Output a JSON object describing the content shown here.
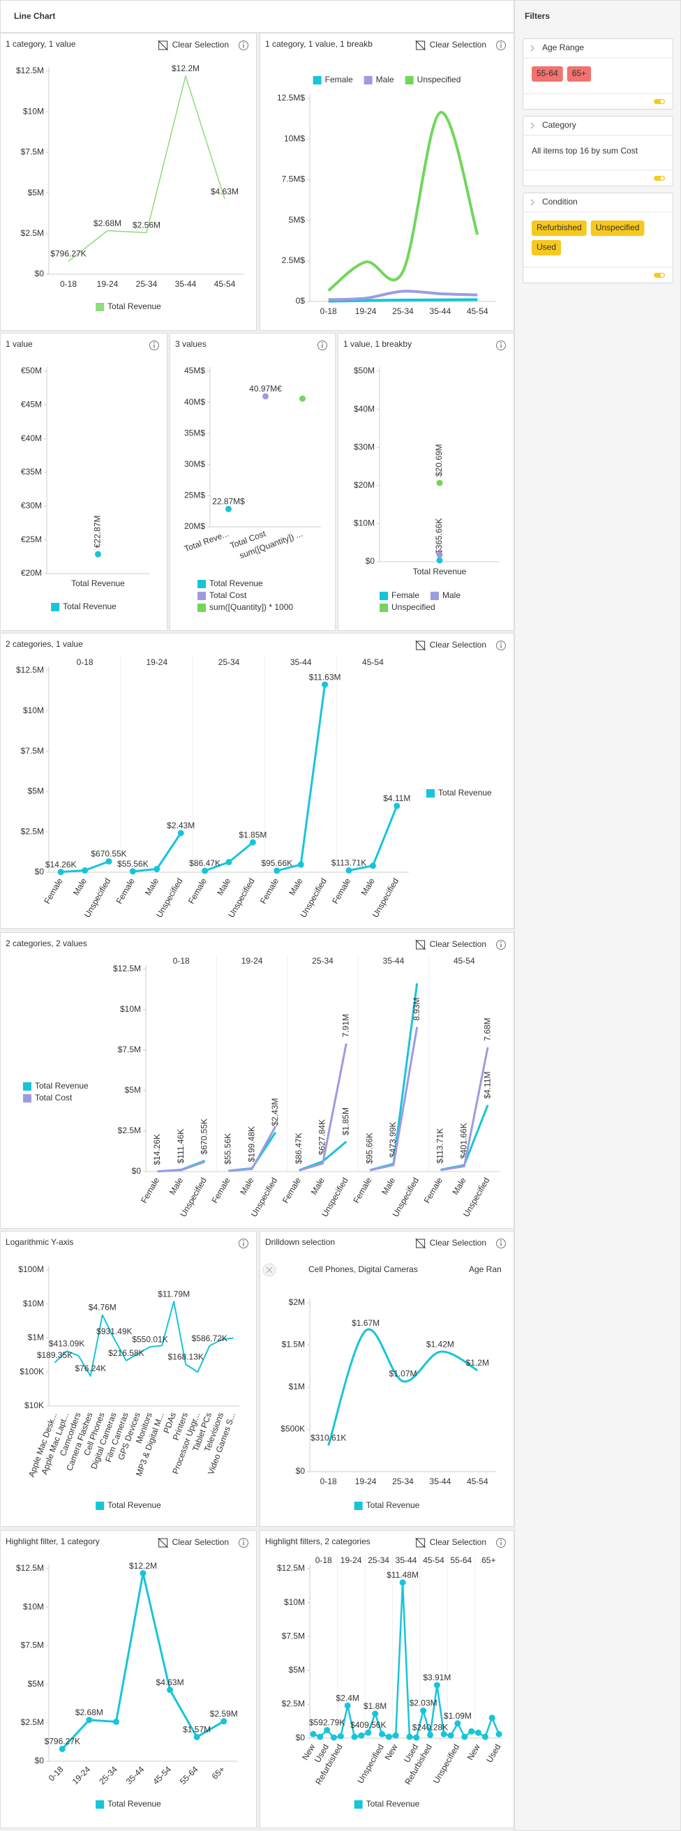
{
  "header": {
    "title": "Line Chart"
  },
  "filters": {
    "title": "Filters",
    "sections": [
      {
        "name": "Age Range",
        "chips": [
          "55-64",
          "65+"
        ],
        "chip_color": "#f0736f",
        "chip_text_color": "#ffffff"
      },
      {
        "name": "Category",
        "text": "All items top 16 by sum Cost"
      },
      {
        "name": "Condition",
        "chips": [
          "Refurbished",
          "Unspecified",
          "Used"
        ],
        "chip_color": "#f7c81e",
        "chip_text_color": "#333333"
      }
    ]
  },
  "chart_data": [
    {
      "type": "line",
      "title": "1 category, 1 value",
      "clear_selection": "Clear Selection",
      "categories": [
        "0-18",
        "19-24",
        "25-34",
        "35-44",
        "45-54"
      ],
      "series": [
        {
          "name": "Total Revenue",
          "color": "#8fdc7a",
          "values": [
            796270,
            2680000,
            2560000,
            12200000,
            4630000
          ],
          "value_labels": [
            "$796.27K",
            "$2.68M",
            "$2.56M",
            "$12.2M",
            "$4.63M"
          ]
        }
      ],
      "ylim": [
        0,
        12500000
      ],
      "yticks": [
        {
          "value": 0,
          "label": "$0"
        },
        {
          "value": 2500000,
          "label": "$2.5M"
        },
        {
          "value": 5000000,
          "label": "$5M"
        },
        {
          "value": 7500000,
          "label": "$7.5M"
        },
        {
          "value": 10000000,
          "label": "$10M"
        },
        {
          "value": 12500000,
          "label": "$12.5M"
        }
      ],
      "smooth": false,
      "markers": false,
      "legend": "bottom"
    },
    {
      "type": "line",
      "title": "1 category, 1 value, 1 breakb",
      "clear_selection": "Clear Selection",
      "categories": [
        "0-18",
        "19-24",
        "25-34",
        "35-44",
        "45-54"
      ],
      "series": [
        {
          "name": "Female",
          "color": "#16c5d9",
          "values": [
            14260,
            55560,
            86470,
            95660,
            113710
          ]
        },
        {
          "name": "Male",
          "color": "#9d9be0",
          "values": [
            111460,
            199480,
            627840,
            473990,
            401660
          ]
        },
        {
          "name": "Unspecified",
          "color": "#72d65c",
          "values": [
            670550,
            2430000,
            1850000,
            11630000,
            4110000
          ]
        }
      ],
      "ylim": [
        0,
        12500000
      ],
      "yticks": [
        {
          "value": 0,
          "label": "0$"
        },
        {
          "value": 2500000,
          "label": "2.5M$"
        },
        {
          "value": 5000000,
          "label": "5M$"
        },
        {
          "value": 7500000,
          "label": "7.5M$"
        },
        {
          "value": 10000000,
          "label": "10M$"
        },
        {
          "value": 12500000,
          "label": "12.5M$"
        }
      ],
      "smooth": true,
      "markers": false,
      "legend": "top"
    },
    {
      "type": "line",
      "title": "1 value",
      "categories": [
        "Total Revenue"
      ],
      "series": [
        {
          "name": "Total Revenue",
          "color": "#16c5d9",
          "values": [
            22870000
          ],
          "value_labels": [
            "€22.87M"
          ]
        }
      ],
      "ylim": [
        20000000,
        50000000
      ],
      "yticks": [
        {
          "value": 20000000,
          "label": "€20M"
        },
        {
          "value": 25000000,
          "label": "€25M"
        },
        {
          "value": 30000000,
          "label": "€30M"
        },
        {
          "value": 35000000,
          "label": "€35M"
        },
        {
          "value": 40000000,
          "label": "€40M"
        },
        {
          "value": 45000000,
          "label": "€45M"
        },
        {
          "value": 50000000,
          "label": "€50M"
        }
      ],
      "smooth": false,
      "markers": true,
      "legend": "bottom"
    },
    {
      "type": "line",
      "title": "3 values",
      "categories": [
        "Total Reve...",
        "Total Cost",
        "sum([Quantity]) ..."
      ],
      "series": [
        {
          "name": "Total Revenue",
          "color": "#16c5d9",
          "values": [
            22870000,
            null,
            null
          ],
          "value_labels": [
            "22.87M$",
            null,
            null
          ]
        },
        {
          "name": "Total Cost",
          "color": "#9d9be0",
          "values": [
            null,
            40970000,
            null
          ],
          "value_labels": [
            null,
            "40.97M€",
            null
          ]
        },
        {
          "name": "sum([Quantity]) * 1000",
          "color": "#72d65c",
          "values": [
            null,
            null,
            40600000
          ]
        }
      ],
      "ylim": [
        20000000,
        45000000
      ],
      "yticks": [
        {
          "value": 20000000,
          "label": "20M$"
        },
        {
          "value": 25000000,
          "label": "25M$"
        },
        {
          "value": 30000000,
          "label": "30M$"
        },
        {
          "value": 35000000,
          "label": "35M$"
        },
        {
          "value": 40000000,
          "label": "40M$"
        },
        {
          "value": 45000000,
          "label": "45M$"
        }
      ],
      "smooth": false,
      "markers": true,
      "legend": "bottom"
    },
    {
      "type": "line",
      "title": "1 value, 1 breakby",
      "categories": [
        "Total Revenue"
      ],
      "series": [
        {
          "name": "Female",
          "color": "#16c5d9",
          "values": [
            365660
          ],
          "value_labels": [
            "$365.66K"
          ]
        },
        {
          "name": "Male",
          "color": "#9d9be0",
          "values": [
            1810000
          ]
        },
        {
          "name": "Unspecified",
          "color": "#72d65c",
          "values": [
            20690000
          ],
          "value_labels": [
            "$20.69M"
          ]
        }
      ],
      "ylim": [
        0,
        50000000
      ],
      "yticks": [
        {
          "value": 0,
          "label": "$0"
        },
        {
          "value": 10000000,
          "label": "$10M"
        },
        {
          "value": 20000000,
          "label": "$20M"
        },
        {
          "value": 30000000,
          "label": "$30M"
        },
        {
          "value": 40000000,
          "label": "$40M"
        },
        {
          "value": 50000000,
          "label": "$50M"
        }
      ],
      "smooth": false,
      "markers": true,
      "legend": "bottom"
    },
    {
      "type": "line",
      "title": "2 categories, 1 value",
      "clear_selection": "Clear Selection",
      "groups": [
        "0-18",
        "19-24",
        "25-34",
        "35-44",
        "45-54"
      ],
      "categories": [
        "Female",
        "Male",
        "Unspecified",
        "Female",
        "Male",
        "Unspecified",
        "Female",
        "Male",
        "Unspecified",
        "Female",
        "Male",
        "Unspecified",
        "Female",
        "Male",
        "Unspecified"
      ],
      "series": [
        {
          "name": "Total Revenue",
          "color": "#16c5d9",
          "values": [
            14260,
            111460,
            670550,
            55560,
            199480,
            2430000,
            86470,
            627840,
            1850000,
            95660,
            473990,
            11630000,
            113710,
            401660,
            4110000
          ],
          "value_labels": [
            "$14.26K",
            null,
            "$670.55K",
            "$55.56K",
            null,
            "$2.43M",
            "$86.47K",
            null,
            "$1.85M",
            "$95.66K",
            null,
            "$11.63M",
            "$113.71K",
            null,
            "$4.11M"
          ]
        }
      ],
      "ylim": [
        0,
        12500000
      ],
      "yticks": [
        {
          "value": 0,
          "label": "$0"
        },
        {
          "value": 2500000,
          "label": "$2.5M"
        },
        {
          "value": 5000000,
          "label": "$5M"
        },
        {
          "value": 7500000,
          "label": "$7.5M"
        },
        {
          "value": 10000000,
          "label": "$10M"
        },
        {
          "value": 12500000,
          "label": "$12.5M"
        }
      ],
      "smooth": false,
      "markers": true,
      "connect_groups": false,
      "legend": "right"
    },
    {
      "type": "line",
      "title": "2 categories, 2 values",
      "clear_selection": "Clear Selection",
      "groups": [
        "0-18",
        "19-24",
        "25-34",
        "35-44",
        "45-54"
      ],
      "categories": [
        "Female",
        "Male",
        "Unspecified",
        "Female",
        "Male",
        "Unspecified",
        "Female",
        "Male",
        "Unspecified",
        "Female",
        "Male",
        "Unspecified",
        "Female",
        "Male",
        "Unspecified"
      ],
      "series": [
        {
          "name": "Total Revenue",
          "color": "#16c5d9",
          "values": [
            14260,
            111460,
            670550,
            55560,
            199480,
            2430000,
            86470,
            627840,
            1850000,
            95660,
            473990,
            11630000,
            113710,
            401660,
            4110000
          ],
          "value_labels": [
            "$14.26K",
            "$111.46K",
            "$670.55K",
            "$55.56K",
            "$199.48K",
            "$2.43M",
            "$86.47K",
            "$627.84K",
            "$1.85M",
            "$95.66K",
            "$473.99K",
            null,
            "$113.71K",
            "$401.66K",
            "$4.11M"
          ]
        },
        {
          "name": "Total Cost",
          "color": "#9d9be0",
          "values": [
            10000,
            90000,
            600000,
            45000,
            160000,
            2800000,
            70000,
            500000,
            7910000,
            80000,
            400000,
            8930000,
            90000,
            330000,
            7680000
          ],
          "value_labels": [
            null,
            null,
            null,
            null,
            null,
            null,
            null,
            null,
            "7.91M",
            null,
            null,
            "8.93M",
            null,
            null,
            "7.68M"
          ]
        }
      ],
      "ylim": [
        0,
        12500000
      ],
      "yticks": [
        {
          "value": 0,
          "label": "$0"
        },
        {
          "value": 2500000,
          "label": "$2.5M"
        },
        {
          "value": 5000000,
          "label": "$5M"
        },
        {
          "value": 7500000,
          "label": "$7.5M"
        },
        {
          "value": 10000000,
          "label": "$10M"
        },
        {
          "value": 12500000,
          "label": "$12.5M"
        }
      ],
      "smooth": false,
      "markers": false,
      "connect_groups": false,
      "legend": "left"
    },
    {
      "type": "line",
      "title": "Logarithmic Y-axis",
      "log_scale": true,
      "categories": [
        "Apple Mac Desk...",
        "Apple Mac Lapt...",
        "Camcorders",
        "Camera Flashes",
        "Cell Phones",
        "Digital Cameras",
        "Film Cameras",
        "GPS Devices",
        "Monitors",
        "MP3 & Digital M...",
        "PDAs",
        "Printers",
        "Processor Upgr...",
        "Tablet PCs",
        "Televisions",
        "Video Games S..."
      ],
      "series": [
        {
          "name": "Total Revenue",
          "color": "#16c5d9",
          "values": [
            189350,
            413090,
            300000,
            76240,
            4760000,
            931490,
            216580,
            350000,
            550010,
            600000,
            11790000,
            168130,
            100000,
            586720,
            900000,
            1000000
          ],
          "value_labels": [
            "$189.35K",
            "$413.09K",
            null,
            "$76.24K",
            "$4.76M",
            "$931.49K",
            "$216.58K",
            null,
            "$550.01K",
            null,
            "$11.79M",
            "$168.13K",
            null,
            "$586.72K",
            null,
            null
          ]
        }
      ],
      "ylim": [
        10000,
        100000000
      ],
      "yticks": [
        {
          "value": 10000,
          "label": "$10K"
        },
        {
          "value": 100000,
          "label": "$100K"
        },
        {
          "value": 1000000,
          "label": "$1M"
        },
        {
          "value": 10000000,
          "label": "$10M"
        },
        {
          "value": 100000000,
          "label": "$100M"
        }
      ],
      "smooth": false,
      "markers": false,
      "legend": "bottom"
    },
    {
      "type": "line",
      "title": "Drilldown selection",
      "clear_selection": "Clear Selection",
      "breadcrumb": [
        "Cell Phones, Digital Cameras",
        "Age Ran"
      ],
      "categories": [
        "0-18",
        "19-24",
        "25-34",
        "35-44",
        "45-54"
      ],
      "series": [
        {
          "name": "Total Revenue",
          "color": "#16c5d9",
          "values": [
            310610,
            1670000,
            1070000,
            1420000,
            1200000
          ],
          "value_labels": [
            "$310.61K",
            "$1.67M",
            "$1.07M",
            "$1.42M",
            "$1.2M"
          ]
        }
      ],
      "ylim": [
        0,
        2000000
      ],
      "yticks": [
        {
          "value": 0,
          "label": "$0"
        },
        {
          "value": 500000,
          "label": "$500K"
        },
        {
          "value": 1000000,
          "label": "$1M"
        },
        {
          "value": 1500000,
          "label": "$1.5M"
        },
        {
          "value": 2000000,
          "label": "$2M"
        }
      ],
      "smooth": true,
      "markers": false,
      "legend": "bottom"
    },
    {
      "type": "line",
      "title": "Highlight filter, 1 category",
      "clear_selection": "Clear Selection",
      "categories": [
        "0-18",
        "19-24",
        "25-34",
        "35-44",
        "45-54",
        "55-64",
        "65+"
      ],
      "series": [
        {
          "name": "Total Revenue",
          "color": "#16c5d9",
          "values": [
            796270,
            2680000,
            2560000,
            12200000,
            4630000,
            1570000,
            2590000
          ],
          "value_labels": [
            "$796.27K",
            "$2.68M",
            null,
            "$12.2M",
            "$4.63M",
            "$1.57M",
            "$2.59M"
          ]
        }
      ],
      "ylim": [
        0,
        12500000
      ],
      "yticks": [
        {
          "value": 0,
          "label": "$0"
        },
        {
          "value": 2500000,
          "label": "$2.5M"
        },
        {
          "value": 5000000,
          "label": "$5M"
        },
        {
          "value": 7500000,
          "label": "$7.5M"
        },
        {
          "value": 10000000,
          "label": "$10M"
        },
        {
          "value": 12500000,
          "label": "$12.5M"
        }
      ],
      "smooth": false,
      "markers": true,
      "legend": "bottom"
    },
    {
      "type": "line",
      "title": "Highlight filters, 2 categories",
      "clear_selection": "Clear Selection",
      "groups": [
        "0-18",
        "19-24",
        "25-34",
        "35-44",
        "45-54",
        "55-64",
        "65+"
      ],
      "categories": [
        "New",
        null,
        "Used",
        null,
        "Refurbished",
        null,
        null,
        null,
        null,
        null,
        "Unspecified",
        null,
        "New",
        null,
        null,
        "Used",
        null,
        "Refurbished",
        null,
        null,
        null,
        "Unspecified",
        null,
        null,
        "New",
        null,
        null,
        "Used"
      ],
      "series": [
        {
          "name": "Total Revenue",
          "color": "#16c5d9",
          "values": [
            300000,
            100000,
            592790,
            50000,
            150000,
            2400000,
            100000,
            200000,
            409560,
            1800000,
            300000,
            100000,
            200000,
            11480000,
            100000,
            50000,
            2030000,
            240280,
            3910000,
            300000,
            200000,
            1090000,
            100000,
            500000,
            400000,
            100000,
            1500000,
            300000
          ],
          "value_labels": [
            null,
            null,
            "$592.79K",
            null,
            null,
            "$2.4M",
            null,
            null,
            "$409.56K",
            "$1.8M",
            null,
            null,
            null,
            "$11.48M",
            null,
            null,
            "$2.03M",
            "$240.28K",
            "$3.91M",
            null,
            null,
            "$1.09M",
            null,
            null,
            null,
            null,
            null,
            null
          ]
        }
      ],
      "ylim": [
        0,
        12500000
      ],
      "yticks": [
        {
          "value": 0,
          "label": "$0"
        },
        {
          "value": 2500000,
          "label": "$2.5M"
        },
        {
          "value": 5000000,
          "label": "$5M"
        },
        {
          "value": 7500000,
          "label": "$7.5M"
        },
        {
          "value": 10000000,
          "label": "$10M"
        },
        {
          "value": 12500000,
          "label": "$12.5M"
        }
      ],
      "smooth": false,
      "markers": true,
      "connect_groups": true,
      "legend": "bottom"
    }
  ]
}
